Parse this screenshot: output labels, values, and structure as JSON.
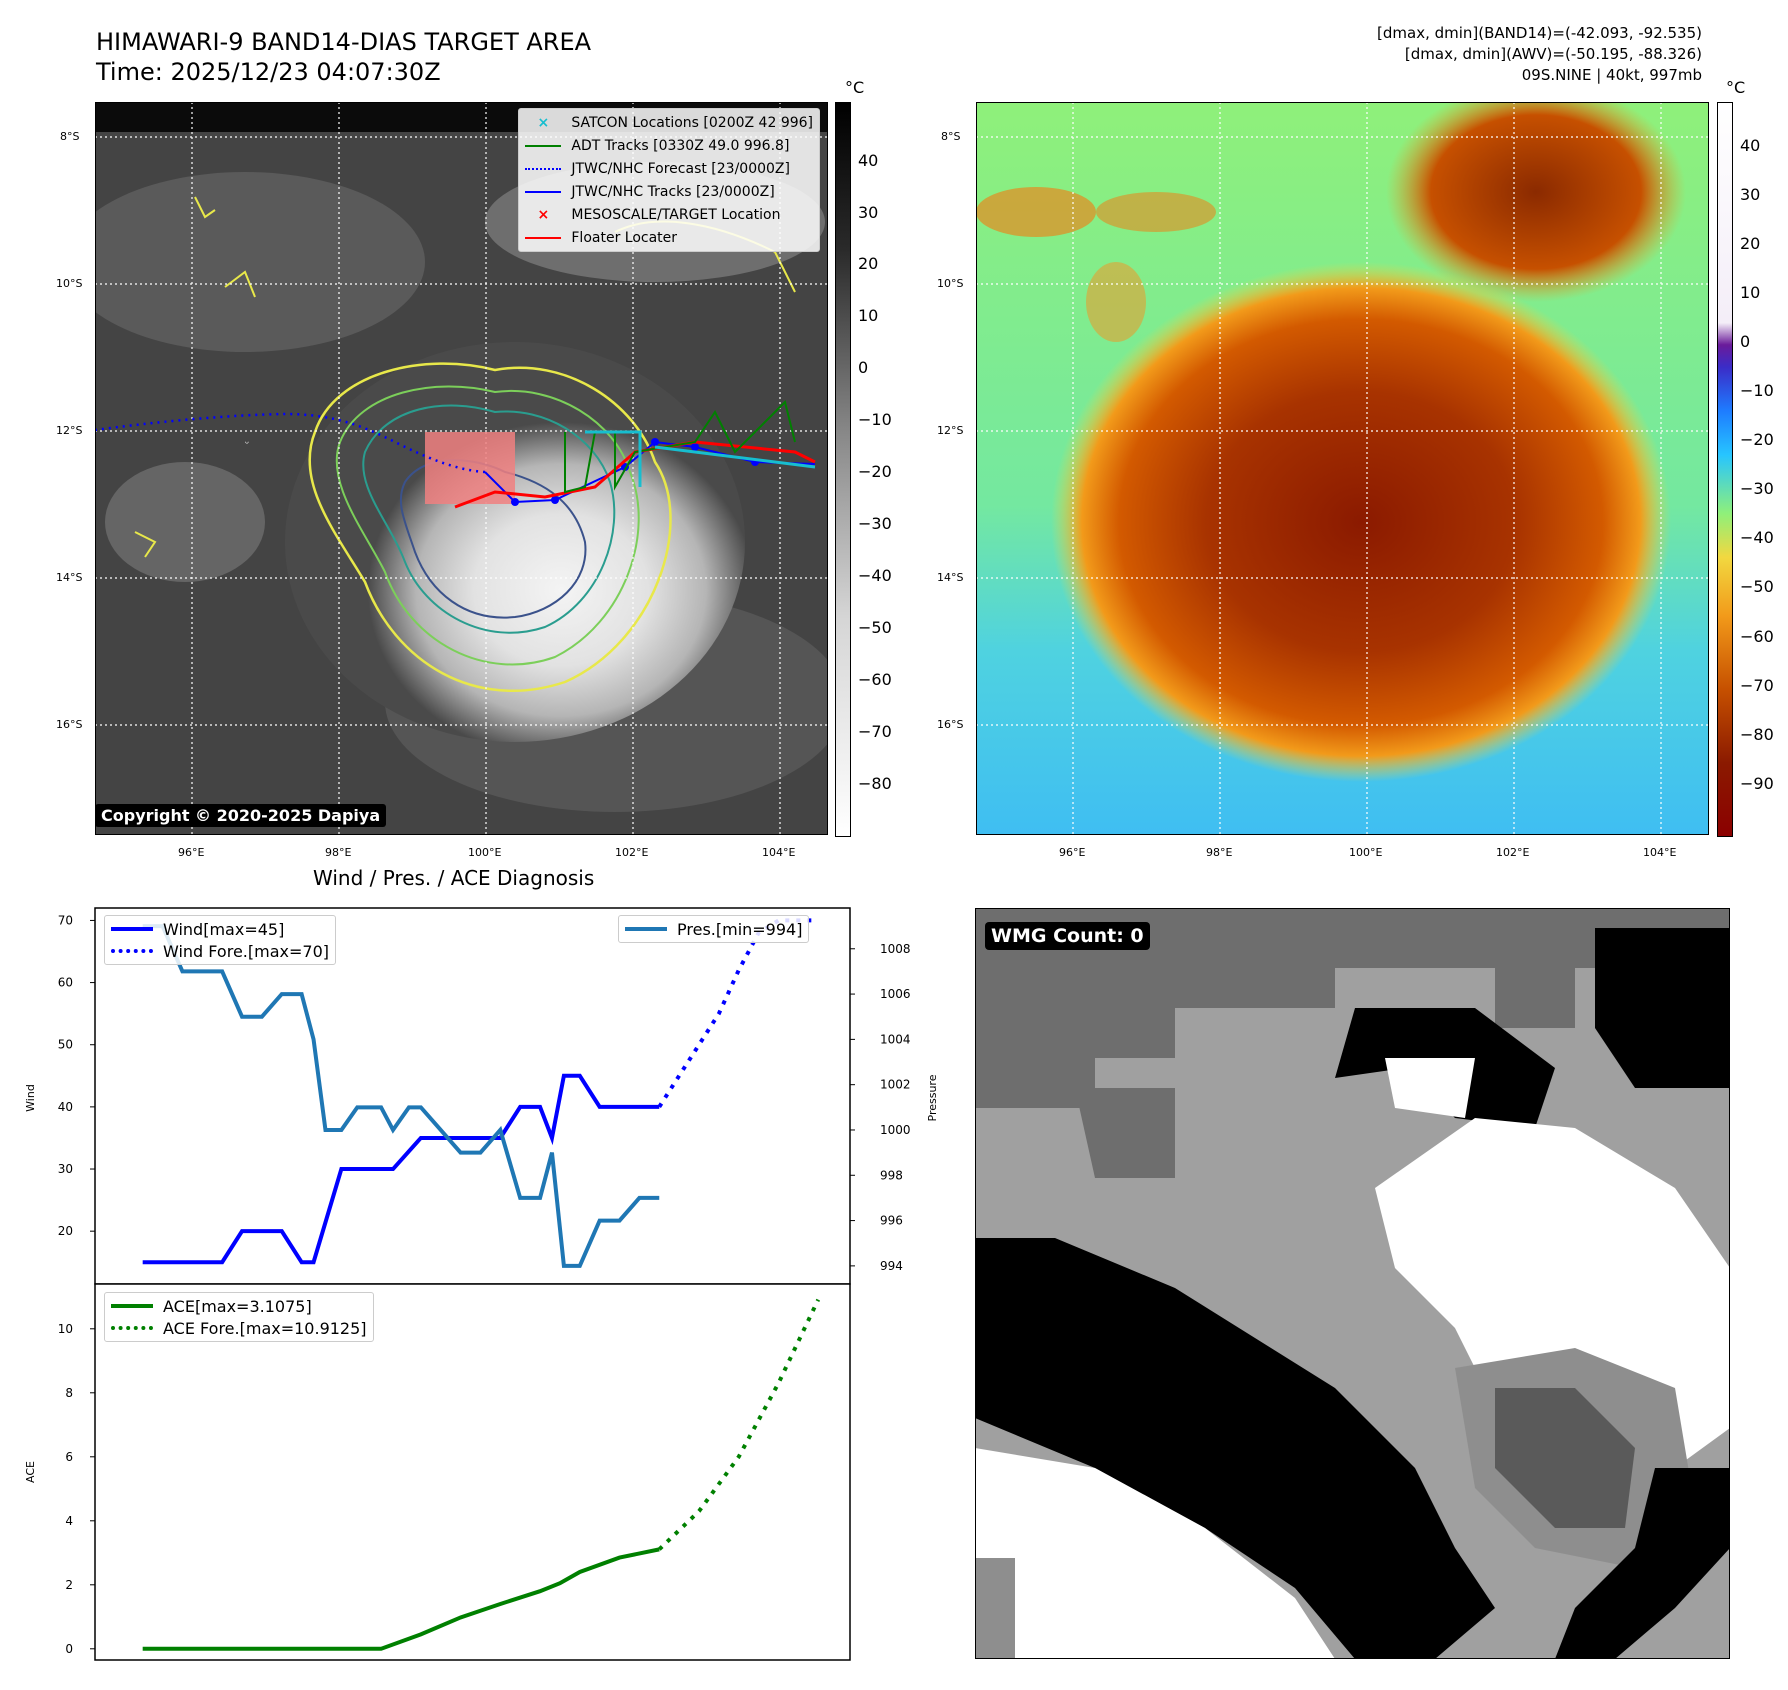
{
  "header": {
    "title_line1": "HIMAWARI-9 BAND14-DIAS TARGET AREA",
    "title_line2": "Time: 2025/12/23 04:07:30Z",
    "stats_line1": "[dmax, dmin](BAND14)=(-42.093, -92.535)",
    "stats_line2": "[dmax, dmin](AWV)=(-50.195, -88.326)",
    "stats_line3": "09S.NINE | 40kt, 997mb"
  },
  "map": {
    "lat_labels": [
      "8°S",
      "10°S",
      "12°S",
      "14°S",
      "16°S"
    ],
    "lon_labels": [
      "96°E",
      "98°E",
      "100°E",
      "102°E",
      "104°E"
    ],
    "copyright": "Copyright © 2020-2025 Dapiya",
    "legend": [
      {
        "label": "SATCON Locations [0200Z 42 996]",
        "color": "#17becf",
        "style": "x"
      },
      {
        "label": "ADT Tracks [0330Z 49.0 996.8]",
        "color": "#008000",
        "style": "solid"
      },
      {
        "label": "JTWC/NHC Forecast [23/0000Z]",
        "color": "#0000ff",
        "style": "dotted"
      },
      {
        "label": "JTWC/NHC Tracks [23/0000Z]",
        "color": "#0000ff",
        "style": "dot-line"
      },
      {
        "label": "MESOSCALE/TARGET Location",
        "color": "#ff0000",
        "style": "x"
      },
      {
        "label": "Floater Locater",
        "color": "#ff0000",
        "style": "solid"
      }
    ]
  },
  "colorbar_gray": {
    "unit": "°C",
    "ticks": [
      "40",
      "30",
      "20",
      "10",
      "0",
      "−10",
      "−20",
      "−30",
      "−40",
      "−50",
      "−60",
      "−70",
      "−80"
    ]
  },
  "colorbar_color": {
    "unit": "°C",
    "ticks": [
      "40",
      "30",
      "20",
      "10",
      "0",
      "−10",
      "−20",
      "−30",
      "−40",
      "−50",
      "−60",
      "−70",
      "−80",
      "−90"
    ]
  },
  "wmg": {
    "label": "WMG Count: 0"
  },
  "chart_data": [
    {
      "type": "line",
      "title": "Wind / Pres. / ACE Diagnosis",
      "ylabel": "Wind",
      "y2label": "Pressure",
      "ylim": [
        11.5,
        72
      ],
      "y2lim": [
        993.2,
        1009.8
      ],
      "yticks": [
        "20",
        "30",
        "40",
        "50",
        "60",
        "70"
      ],
      "y2ticks": [
        "994",
        "996",
        "998",
        "1000",
        "1002",
        "1004",
        "1006",
        "1008"
      ],
      "legend_left": [
        "Wind[max=45]",
        "Wind Fore.[max=70]"
      ],
      "legend_right": [
        "Pres.[min=994]"
      ],
      "series": [
        {
          "name": "Wind[max=45]",
          "color": "#0000ff",
          "axis": "left",
          "x": [
            0,
            1,
            2,
            2.5,
            3,
            3.5,
            4,
            4.3,
            5,
            5.5,
            6,
            6.3,
            7,
            7.5,
            8,
            8.5,
            9,
            9.5,
            10,
            10.3,
            10.6,
            11,
            11.5,
            12,
            13
          ],
          "values": [
            15,
            15,
            15,
            20,
            20,
            20,
            15,
            15,
            30,
            30,
            30,
            30,
            35,
            35,
            35,
            35,
            35,
            40,
            40,
            35,
            45,
            45,
            40,
            40,
            40
          ]
        },
        {
          "name": "Wind Fore.[max=70]",
          "color": "#0000ff",
          "axis": "left",
          "dash": true,
          "x": [
            13,
            14,
            14.5,
            15,
            15.5,
            16,
            17
          ],
          "values": [
            40,
            50,
            55,
            62,
            68,
            70,
            70
          ]
        },
        {
          "name": "Pres.[min=994]",
          "color": "#1f77b4",
          "axis": "right",
          "x": [
            0,
            0.5,
            1,
            2,
            2.5,
            3,
            3.5,
            4,
            4.3,
            4.6,
            5,
            5.4,
            6,
            6.3,
            6.7,
            7,
            7.5,
            8,
            8.5,
            9,
            9.5,
            10,
            10.3,
            10.6,
            11,
            11.5,
            12,
            12.5,
            13
          ],
          "values": [
            1009,
            1009,
            1007,
            1007,
            1005,
            1005,
            1006,
            1006,
            1004,
            1000,
            1000,
            1001,
            1001,
            1000,
            1001,
            1001,
            1000,
            999,
            999,
            1000,
            997,
            997,
            999,
            994,
            994,
            996,
            996,
            997,
            997
          ]
        }
      ]
    },
    {
      "type": "line",
      "ylabel": "ACE",
      "ylim": [
        -0.35,
        11.4
      ],
      "yticks": [
        "0",
        "2",
        "4",
        "6",
        "8",
        "10"
      ],
      "series": [
        {
          "name": "ACE[max=3.1075]",
          "color": "#008000",
          "x": [
            0,
            3,
            6,
            7,
            8,
            9,
            10,
            10.5,
            11,
            12,
            13
          ],
          "values": [
            0,
            0,
            0,
            0.45,
            0.98,
            1.4,
            1.8,
            2.05,
            2.4,
            2.85,
            3.1075
          ]
        },
        {
          "name": "ACE Fore.[max=10.9125]",
          "color": "#008000",
          "dash": true,
          "x": [
            13,
            14,
            15,
            16,
            17
          ],
          "values": [
            3.1075,
            4.3,
            6.0,
            8.3,
            10.9125
          ]
        }
      ]
    }
  ]
}
